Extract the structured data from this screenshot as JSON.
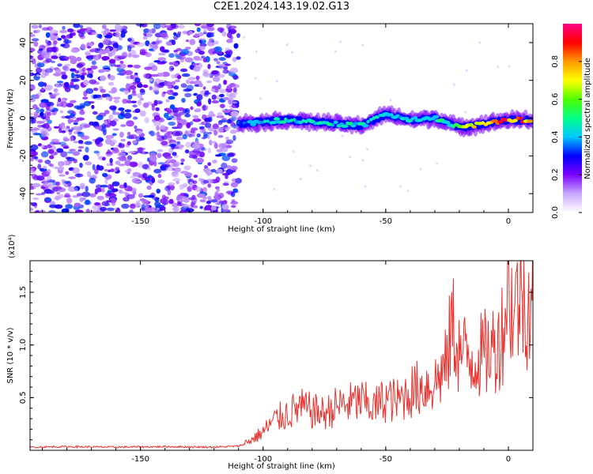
{
  "page": {
    "title": "C2E1.2024.143.19.02.G13"
  },
  "chart_data": [
    {
      "type": "heatmap",
      "xlabel": "Height of straight line (km)",
      "ylabel": "Frequency (Hz)",
      "xlim": [
        -195,
        10
      ],
      "ylim": [
        -50,
        50
      ],
      "xticks": [
        -150,
        -100,
        -50,
        0
      ],
      "yticks": [
        -40,
        -20,
        0,
        20,
        40
      ],
      "noise_region": {
        "x": [
          -195,
          -110
        ],
        "y": [
          -50,
          50
        ],
        "amplitude": [
          0.1,
          0.35
        ]
      },
      "signal_track": {
        "x": [
          -110,
          -100,
          -90,
          -80,
          -70,
          -60,
          -50,
          -40,
          -30,
          -20,
          -10,
          0,
          10
        ],
        "frequency": [
          -3,
          -2,
          -1,
          -2,
          -3,
          -4,
          2,
          -1,
          0,
          -5,
          -3,
          -1,
          -1
        ],
        "amplitude": [
          0.35,
          0.45,
          0.5,
          0.5,
          0.5,
          0.5,
          0.45,
          0.45,
          0.5,
          0.6,
          0.85,
          0.95,
          0.9
        ]
      },
      "colorbar": {
        "label": "Normalized spectral amplitude",
        "range": [
          0,
          1
        ],
        "ticks": [
          "0.0",
          "0.2",
          "0.4",
          "0.6",
          "0.8"
        ],
        "colors": [
          "#ffffff",
          "#c8a8ff",
          "#7a00ff",
          "#0000ff",
          "#00c8ff",
          "#00ff88",
          "#50ff00",
          "#ffff00",
          "#ff9900",
          "#ff0000",
          "#ff0088"
        ]
      }
    },
    {
      "type": "line",
      "xlabel": "Height of straight line (km)",
      "ylabel": "SNR (10 * v/v)",
      "multiplier_label": "(x10⁴)",
      "xlim": [
        -195,
        10
      ],
      "ylim": [
        0,
        18000
      ],
      "xticks": [
        -150,
        -100,
        -50,
        0
      ],
      "yticks": [
        {
          "value": 5000,
          "label": "0.5"
        },
        {
          "value": 10000,
          "label": "1.0"
        },
        {
          "value": 15000,
          "label": "1.5"
        }
      ],
      "line_color": "#e8302c",
      "series": [
        {
          "x": [
            -195,
            -180,
            -160,
            -140,
            -120,
            -110,
            -105,
            -100,
            -95,
            -90,
            -85,
            -80,
            -75,
            -70,
            -65,
            -60,
            -55,
            -50,
            -45,
            -40,
            -35,
            -30,
            -25,
            -23,
            -20,
            -15,
            -10,
            -5,
            -2,
            0,
            2,
            5,
            8,
            10
          ],
          "values": [
            300,
            350,
            300,
            350,
            300,
            400,
            800,
            1500,
            2500,
            3000,
            3500,
            3200,
            3000,
            3600,
            3800,
            4000,
            3500,
            4200,
            4000,
            4800,
            5200,
            5500,
            7000,
            10500,
            8000,
            7500,
            7800,
            8500,
            10000,
            14000,
            11000,
            13000,
            12000,
            12500
          ]
        }
      ]
    }
  ]
}
